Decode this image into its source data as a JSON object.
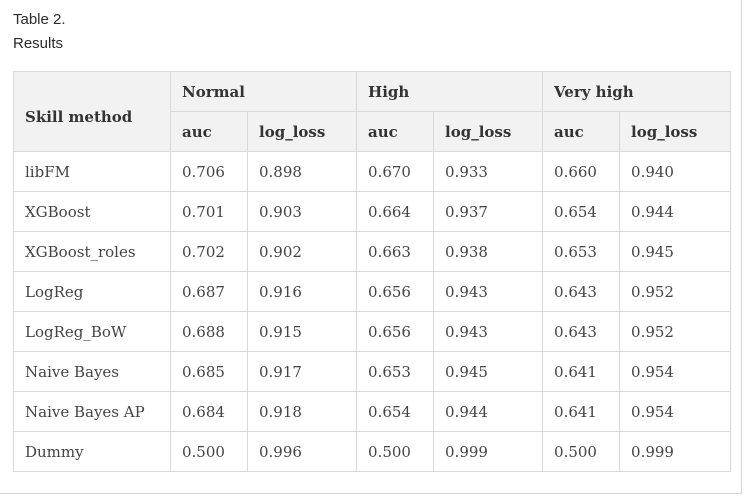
{
  "caption": {
    "label": "Table 2.",
    "title": "Results"
  },
  "table": {
    "method_header": "Skill method",
    "groups": [
      "Normal",
      "High",
      "Very high"
    ],
    "subheaders": [
      "auc",
      "log_loss",
      "auc",
      "log_loss",
      "auc",
      "log_loss"
    ],
    "rows": [
      [
        "libFM",
        "0.706",
        "0.898",
        "0.670",
        "0.933",
        "0.660",
        "0.940"
      ],
      [
        "XGBoost",
        "0.701",
        "0.903",
        "0.664",
        "0.937",
        "0.654",
        "0.944"
      ],
      [
        "XGBoost_roles",
        "0.702",
        "0.902",
        "0.663",
        "0.938",
        "0.653",
        "0.945"
      ],
      [
        "LogReg",
        "0.687",
        "0.916",
        "0.656",
        "0.943",
        "0.643",
        "0.952"
      ],
      [
        "LogReg_BoW",
        "0.688",
        "0.915",
        "0.656",
        "0.943",
        "0.643",
        "0.952"
      ],
      [
        "Naive Bayes",
        "0.685",
        "0.917",
        "0.653",
        "0.945",
        "0.641",
        "0.954"
      ],
      [
        "Naive Bayes AP",
        "0.684",
        "0.918",
        "0.654",
        "0.944",
        "0.641",
        "0.954"
      ],
      [
        "Dummy",
        "0.500",
        "0.996",
        "0.500",
        "0.999",
        "0.500",
        "0.999"
      ]
    ]
  }
}
